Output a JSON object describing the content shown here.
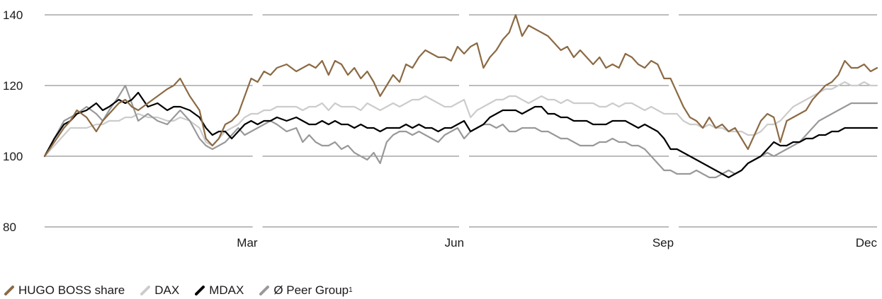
{
  "chart_data": {
    "type": "line",
    "title": "",
    "xlabel": "",
    "ylabel": "",
    "ylim": [
      80,
      140
    ],
    "yticks": [
      80,
      100,
      120,
      140
    ],
    "grid": true,
    "x_month_ticks": [
      {
        "label": "Mar",
        "x": 66
      },
      {
        "label": "Jun",
        "x": 130
      },
      {
        "label": "Sep",
        "x": 195
      },
      {
        "label": "Dec",
        "x": 258
      }
    ],
    "x_range": [
      0,
      258
    ],
    "legend_position": "bottom-left",
    "series": [
      {
        "name": "HUGO BOSS share",
        "color": "#8b6a44",
        "width": 2.2,
        "x": [
          0,
          3,
          6,
          8,
          10,
          13,
          16,
          18,
          20,
          23,
          25,
          27,
          29,
          32,
          35,
          38,
          40,
          42,
          45,
          48,
          50,
          52,
          54,
          56,
          58,
          60,
          62,
          64,
          66,
          68,
          70,
          72,
          75,
          78,
          80,
          82,
          84,
          86,
          88,
          90,
          92,
          94,
          96,
          98,
          100,
          102,
          104,
          106,
          108,
          110,
          112,
          114,
          116,
          118,
          120,
          122,
          124,
          126,
          128,
          130,
          132,
          134,
          136,
          138,
          140,
          142,
          144,
          146,
          148,
          150,
          152,
          154,
          156,
          158,
          160,
          162,
          164,
          166,
          168,
          170,
          172,
          174,
          176,
          178,
          180,
          182,
          184,
          186,
          188,
          190,
          192,
          194,
          196,
          198,
          200,
          202,
          204,
          206,
          208,
          210,
          212,
          214,
          216,
          218,
          220,
          222,
          224,
          226,
          228,
          230,
          232,
          234,
          236,
          238,
          240,
          242,
          244,
          246,
          248,
          250,
          252,
          254,
          256,
          258
        ],
        "values": [
          100,
          104,
          108,
          110,
          113,
          111,
          107,
          110,
          112,
          115,
          116,
          114,
          113,
          115,
          117,
          119,
          120,
          122,
          117,
          113,
          105,
          103,
          105,
          109,
          110,
          112,
          117,
          122,
          121,
          124,
          123,
          125,
          126,
          124,
          125,
          126,
          125,
          127,
          123,
          127,
          126,
          123,
          125,
          122,
          124,
          121,
          117,
          120,
          123,
          121,
          126,
          125,
          128,
          130,
          129,
          128,
          128,
          127,
          131,
          129,
          131,
          132,
          125,
          128,
          130,
          133,
          135,
          140,
          134,
          137,
          136,
          135,
          134,
          132,
          130,
          131,
          128,
          130,
          128,
          126,
          128,
          125,
          126,
          125,
          129,
          128,
          126,
          125,
          127,
          126,
          122,
          122,
          118,
          114,
          111,
          110,
          108,
          111,
          108,
          109,
          107,
          108,
          105,
          102,
          106,
          110,
          112,
          111,
          104,
          110,
          111,
          112,
          113,
          116,
          118,
          120,
          121,
          123,
          127,
          125,
          125,
          126,
          124,
          125
        ]
      },
      {
        "name": "DAX",
        "color": "#cccccc",
        "width": 2.2,
        "x": [
          0,
          3,
          6,
          8,
          10,
          13,
          16,
          18,
          20,
          23,
          25,
          27,
          29,
          32,
          35,
          38,
          40,
          42,
          45,
          48,
          50,
          52,
          54,
          56,
          58,
          60,
          62,
          64,
          66,
          68,
          70,
          72,
          75,
          78,
          80,
          82,
          84,
          86,
          88,
          90,
          92,
          94,
          96,
          98,
          100,
          102,
          104,
          106,
          108,
          110,
          112,
          114,
          116,
          118,
          120,
          122,
          124,
          126,
          128,
          130,
          132,
          134,
          136,
          138,
          140,
          142,
          144,
          146,
          148,
          150,
          152,
          154,
          156,
          158,
          160,
          162,
          164,
          166,
          168,
          170,
          172,
          174,
          176,
          178,
          180,
          182,
          184,
          186,
          188,
          190,
          192,
          194,
          196,
          198,
          200,
          202,
          204,
          206,
          208,
          210,
          212,
          214,
          216,
          218,
          220,
          222,
          224,
          226,
          228,
          230,
          232,
          234,
          236,
          238,
          240,
          242,
          244,
          246,
          248,
          250,
          252,
          254,
          256,
          258
        ],
        "values": [
          100,
          103,
          106,
          108,
          108,
          108,
          109,
          109,
          110,
          110,
          111,
          111,
          112,
          111,
          111,
          110,
          110,
          111,
          110,
          108,
          104,
          103,
          105,
          107,
          108,
          109,
          111,
          112,
          112,
          113,
          113,
          114,
          114,
          114,
          113,
          114,
          114,
          115,
          113,
          115,
          114,
          114,
          114,
          113,
          115,
          114,
          113,
          114,
          115,
          114,
          115,
          116,
          116,
          117,
          116,
          115,
          114,
          114,
          115,
          116,
          111,
          113,
          114,
          115,
          116,
          116,
          117,
          117,
          116,
          115,
          116,
          117,
          116,
          116,
          115,
          116,
          115,
          115,
          115,
          115,
          114,
          114,
          115,
          114,
          115,
          115,
          114,
          113,
          114,
          113,
          112,
          112,
          112,
          110,
          109,
          109,
          108,
          109,
          108,
          108,
          107,
          107,
          107,
          106,
          106,
          107,
          109,
          109,
          110,
          112,
          114,
          115,
          116,
          117,
          118,
          119,
          119,
          120,
          121,
          120,
          120,
          121,
          120,
          120
        ]
      },
      {
        "name": "MDAX",
        "color": "#000000",
        "width": 2.2,
        "x": [
          0,
          3,
          6,
          8,
          10,
          13,
          16,
          18,
          20,
          23,
          25,
          27,
          29,
          32,
          35,
          38,
          40,
          42,
          45,
          48,
          50,
          52,
          54,
          56,
          58,
          60,
          62,
          64,
          66,
          68,
          70,
          72,
          75,
          78,
          80,
          82,
          84,
          86,
          88,
          90,
          92,
          94,
          96,
          98,
          100,
          102,
          104,
          106,
          108,
          110,
          112,
          114,
          116,
          118,
          120,
          122,
          124,
          126,
          128,
          130,
          132,
          134,
          136,
          138,
          140,
          142,
          144,
          146,
          148,
          150,
          152,
          154,
          156,
          158,
          160,
          162,
          164,
          166,
          168,
          170,
          172,
          174,
          176,
          178,
          180,
          182,
          184,
          186,
          188,
          190,
          192,
          194,
          196,
          198,
          200,
          202,
          204,
          206,
          208,
          210,
          212,
          214,
          216,
          218,
          220,
          222,
          224,
          226,
          228,
          230,
          232,
          234,
          236,
          238,
          240,
          242,
          244,
          246,
          248,
          250,
          252,
          254,
          256,
          258
        ],
        "values": [
          100,
          105,
          109,
          110,
          112,
          113,
          115,
          113,
          114,
          116,
          115,
          116,
          118,
          114,
          115,
          113,
          114,
          114,
          113,
          111,
          108,
          106,
          107,
          107,
          105,
          107,
          109,
          110,
          109,
          110,
          110,
          111,
          110,
          111,
          110,
          109,
          109,
          110,
          109,
          110,
          109,
          109,
          108,
          109,
          108,
          108,
          107,
          108,
          108,
          108,
          109,
          108,
          109,
          108,
          108,
          107,
          108,
          108,
          109,
          110,
          107,
          108,
          109,
          111,
          112,
          113,
          113,
          113,
          112,
          113,
          114,
          114,
          112,
          112,
          111,
          111,
          110,
          110,
          110,
          109,
          109,
          109,
          110,
          110,
          110,
          109,
          108,
          109,
          108,
          107,
          105,
          102,
          102,
          101,
          100,
          99,
          98,
          97,
          96,
          95,
          94,
          95,
          96,
          98,
          99,
          100,
          102,
          104,
          103,
          103,
          104,
          104,
          105,
          105,
          106,
          106,
          107,
          107,
          108,
          108,
          108,
          108,
          108,
          108
        ]
      },
      {
        "name": "Ø Peer Group",
        "color": "#999999",
        "width": 2.2,
        "x": [
          0,
          3,
          6,
          8,
          10,
          13,
          16,
          18,
          20,
          23,
          25,
          27,
          29,
          32,
          35,
          38,
          40,
          42,
          45,
          48,
          50,
          52,
          54,
          56,
          58,
          60,
          62,
          64,
          66,
          68,
          70,
          72,
          75,
          78,
          80,
          82,
          84,
          86,
          88,
          90,
          92,
          94,
          96,
          98,
          100,
          102,
          104,
          106,
          108,
          110,
          112,
          114,
          116,
          118,
          120,
          122,
          124,
          126,
          128,
          130,
          132,
          134,
          136,
          138,
          140,
          142,
          144,
          146,
          148,
          150,
          152,
          154,
          156,
          158,
          160,
          162,
          164,
          166,
          168,
          170,
          172,
          174,
          176,
          178,
          180,
          182,
          184,
          186,
          188,
          190,
          192,
          194,
          196,
          198,
          200,
          202,
          204,
          206,
          208,
          210,
          212,
          214,
          216,
          218,
          220,
          222,
          224,
          226,
          228,
          230,
          232,
          234,
          236,
          238,
          240,
          242,
          244,
          246,
          248,
          250,
          252,
          254,
          256,
          258
        ],
        "values": [
          100,
          105,
          110,
          111,
          112,
          114,
          112,
          110,
          113,
          117,
          120,
          115,
          110,
          112,
          110,
          109,
          111,
          113,
          110,
          105,
          103,
          102,
          103,
          104,
          106,
          108,
          106,
          107,
          108,
          109,
          110,
          109,
          107,
          108,
          104,
          106,
          104,
          103,
          103,
          104,
          102,
          103,
          101,
          100,
          99,
          101,
          98,
          104,
          106,
          107,
          107,
          106,
          107,
          106,
          105,
          104,
          106,
          107,
          108,
          105,
          107,
          108,
          109,
          109,
          108,
          109,
          107,
          107,
          108,
          108,
          108,
          107,
          107,
          106,
          105,
          105,
          104,
          103,
          103,
          103,
          104,
          104,
          105,
          104,
          104,
          103,
          103,
          102,
          100,
          98,
          96,
          96,
          95,
          95,
          95,
          96,
          95,
          94,
          94,
          95,
          96,
          95,
          96,
          98,
          99,
          100,
          101,
          100,
          101,
          102,
          103,
          104,
          106,
          108,
          110,
          111,
          112,
          113,
          114,
          115,
          115,
          115,
          115,
          115
        ]
      }
    ]
  },
  "legend": {
    "items": [
      {
        "label": "HUGO BOSS share",
        "sup": "",
        "color": "#8b6a44"
      },
      {
        "label": "DAX",
        "sup": "",
        "color": "#cccccc"
      },
      {
        "label": "MDAX",
        "sup": "",
        "color": "#000000"
      },
      {
        "label": "Ø Peer Group",
        "sup": "1",
        "color": "#999999"
      }
    ]
  }
}
